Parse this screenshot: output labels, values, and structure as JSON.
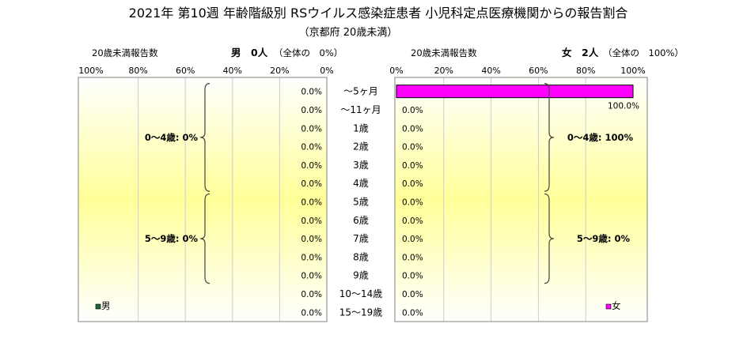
{
  "title": "2021年 第10週 年齢階級別 RSウイルス感染症患者 小児科定点医療機関からの報告割合",
  "subtitle": "（京都府 20歳未満）",
  "colors": {
    "male": "#1a6b3a",
    "female": "#ff00ff",
    "panel_bg_edge": "#ffffff",
    "panel_bg_center": "#ffff99"
  },
  "chart_data": [
    {
      "type": "bar",
      "orientation": "horizontal",
      "direction": "right-to-left",
      "panel": "male",
      "header_left": "20歳未満報告数",
      "header_count": "男　0人",
      "header_note": "（全体の　0%）",
      "xlim": [
        0,
        100
      ],
      "x_ticks": [
        "100%",
        "80%",
        "60%",
        "40%",
        "20%",
        "0%"
      ],
      "categories": [
        "～5ヶ月",
        "～11ヶ月",
        "1歳",
        "2歳",
        "3歳",
        "4歳",
        "5歳",
        "6歳",
        "7歳",
        "8歳",
        "9歳",
        "10～14歳",
        "15～19歳"
      ],
      "series": [
        {
          "name": "男",
          "values": [
            0,
            0,
            0,
            0,
            0,
            0,
            0,
            0,
            0,
            0,
            0,
            0,
            0
          ]
        }
      ],
      "value_labels": [
        "0.0%",
        "0.0%",
        "0.0%",
        "0.0%",
        "0.0%",
        "0.0%",
        "0.0%",
        "0.0%",
        "0.0%",
        "0.0%",
        "0.0%",
        "0.0%",
        "0.0%"
      ],
      "groups": [
        {
          "label": "0～4歳: 0%"
        },
        {
          "label": "5～9歳: 0%"
        }
      ],
      "legend": "bottom-left"
    },
    {
      "type": "bar",
      "orientation": "horizontal",
      "direction": "left-to-right",
      "panel": "female",
      "header_left": "20歳未満報告数",
      "header_count": "女　2人",
      "header_note": "（全体の　100%）",
      "xlim": [
        0,
        100
      ],
      "x_ticks": [
        "0%",
        "20%",
        "40%",
        "60%",
        "80%",
        "100%"
      ],
      "categories": [
        "～5ヶ月",
        "～11ヶ月",
        "1歳",
        "2歳",
        "3歳",
        "4歳",
        "5歳",
        "6歳",
        "7歳",
        "8歳",
        "9歳",
        "10～14歳",
        "15～19歳"
      ],
      "series": [
        {
          "name": "女",
          "values": [
            100,
            0,
            0,
            0,
            0,
            0,
            0,
            0,
            0,
            0,
            0,
            0,
            0
          ]
        }
      ],
      "value_labels": [
        "100.0%",
        "0.0%",
        "0.0%",
        "0.0%",
        "0.0%",
        "0.0%",
        "0.0%",
        "0.0%",
        "0.0%",
        "0.0%",
        "0.0%",
        "0.0%",
        "0.0%"
      ],
      "groups": [
        {
          "label": "0～4歳: 100%"
        },
        {
          "label": "5～9歳: 0%"
        }
      ],
      "legend": "bottom-right"
    }
  ]
}
